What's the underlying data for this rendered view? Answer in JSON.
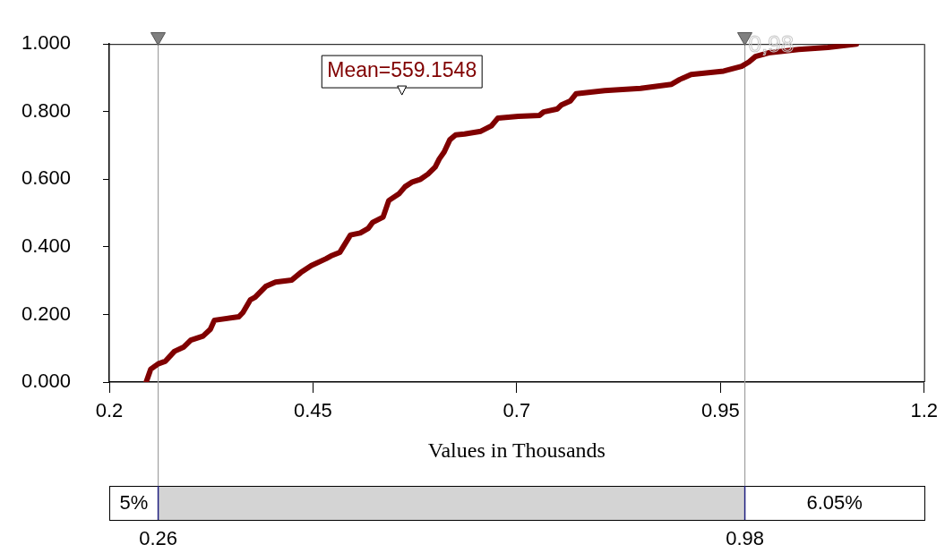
{
  "chart_data": {
    "type": "line",
    "xlabel": "Values in Thousands",
    "x": [
      0.2453,
      0.2508,
      0.26,
      0.269,
      0.28,
      0.291,
      0.3,
      0.315,
      0.324,
      0.329,
      0.359,
      0.364,
      0.373,
      0.379,
      0.392,
      0.404,
      0.424,
      0.435,
      0.448,
      0.466,
      0.472,
      0.483,
      0.496,
      0.508,
      0.518,
      0.523,
      0.536,
      0.543,
      0.556,
      0.563,
      0.572,
      0.582,
      0.591,
      0.6,
      0.605,
      0.611,
      0.618,
      0.625,
      0.636,
      0.656,
      0.669,
      0.677,
      0.702,
      0.728,
      0.733,
      0.75,
      0.755,
      0.766,
      0.773,
      0.808,
      0.852,
      0.89,
      0.9,
      0.914,
      0.954,
      0.976,
      0.985,
      0.993,
      1.009,
      1.046,
      1.082,
      1.117
    ],
    "series": [
      {
        "color": "#800000",
        "values": [
          0,
          0.038,
          0.054,
          0.062,
          0.091,
          0.103,
          0.124,
          0.136,
          0.156,
          0.183,
          0.193,
          0.206,
          0.243,
          0.251,
          0.283,
          0.296,
          0.302,
          0.324,
          0.345,
          0.365,
          0.373,
          0.384,
          0.435,
          0.441,
          0.455,
          0.472,
          0.488,
          0.537,
          0.558,
          0.578,
          0.592,
          0.6,
          0.615,
          0.636,
          0.66,
          0.681,
          0.717,
          0.731,
          0.734,
          0.742,
          0.758,
          0.781,
          0.786,
          0.789,
          0.799,
          0.808,
          0.82,
          0.832,
          0.853,
          0.862,
          0.869,
          0.881,
          0.895,
          0.91,
          0.92,
          0.934,
          0.947,
          0.963,
          0.974,
          0.984,
          0.99,
          1.0
        ]
      }
    ],
    "xlim": [
      0.2,
      1.2
    ],
    "xticks": [
      0.2,
      0.45,
      0.7,
      0.95,
      1.2
    ],
    "ylim": [
      0,
      1
    ],
    "yticks": [
      {
        "value": 0,
        "label": "0.000"
      },
      {
        "value": 0.2,
        "label": "0.200"
      },
      {
        "value": 0.4,
        "label": "0.400"
      },
      {
        "value": 0.6,
        "label": "0.600"
      },
      {
        "value": 0.8,
        "label": "0.800"
      },
      {
        "value": 1,
        "label": "1.000"
      }
    ],
    "grid": false,
    "legend": false,
    "marker": "none",
    "line_style": "solid",
    "ref_lines": [
      {
        "axis": "x",
        "value": 0.26,
        "label": "0.26",
        "color": "#a0a0a0"
      },
      {
        "axis": "x",
        "value": 0.98,
        "label": "0.98",
        "color": "#a0a0a0"
      }
    ],
    "annotations": [
      "5%",
      "6.05%",
      "0,98",
      {
        "text": "Mean=559.1548",
        "x": 0.5591548,
        "y": 0.86
      }
    ]
  }
}
